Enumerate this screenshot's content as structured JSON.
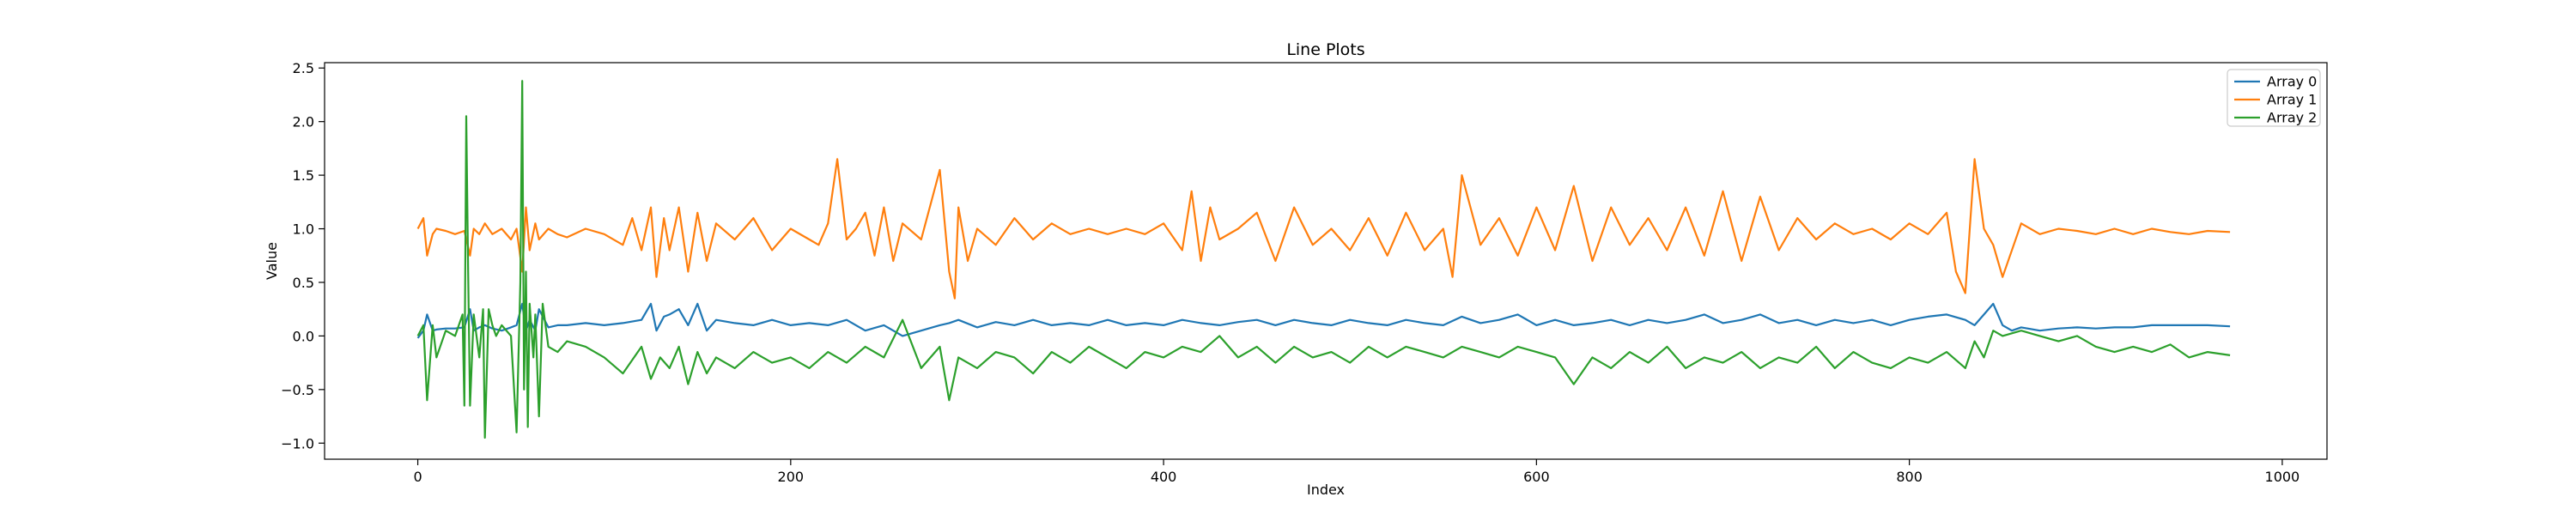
{
  "chart_data": {
    "type": "line",
    "title": "Line Plots",
    "xlabel": "Index",
    "ylabel": "Value",
    "xlim": [
      -50,
      1024
    ],
    "ylim": [
      -1.15,
      2.55
    ],
    "xticks": [
      0,
      200,
      400,
      600,
      800,
      1000
    ],
    "yticks": [
      -1.0,
      -0.5,
      0.0,
      0.5,
      1.0,
      1.5,
      2.0,
      2.5
    ],
    "ytick_labels": [
      "−1.0",
      "−0.5",
      "0.0",
      "0.5",
      "1.0",
      "1.5",
      "2.0",
      "2.5"
    ],
    "grid": false,
    "legend_position": "top-right",
    "series": [
      {
        "name": "Array 0",
        "color": "#1f77b4",
        "x": [
          0,
          3,
          5,
          8,
          10,
          15,
          20,
          25,
          28,
          30,
          33,
          36,
          40,
          45,
          50,
          53,
          56,
          58,
          60,
          63,
          65,
          70,
          75,
          80,
          90,
          100,
          110,
          120,
          125,
          128,
          132,
          135,
          140,
          145,
          150,
          155,
          160,
          170,
          180,
          190,
          200,
          210,
          220,
          230,
          240,
          250,
          260,
          270,
          280,
          285,
          290,
          300,
          310,
          320,
          330,
          340,
          350,
          360,
          370,
          380,
          390,
          400,
          410,
          420,
          430,
          440,
          450,
          460,
          470,
          480,
          490,
          500,
          510,
          520,
          530,
          540,
          550,
          560,
          570,
          580,
          590,
          600,
          610,
          620,
          630,
          640,
          650,
          660,
          670,
          680,
          690,
          700,
          710,
          720,
          730,
          740,
          750,
          760,
          770,
          780,
          790,
          800,
          810,
          820,
          830,
          835,
          840,
          845,
          850,
          855,
          860,
          870,
          880,
          890,
          900,
          910,
          920,
          930,
          940,
          950,
          960,
          972
        ],
        "values": [
          -0.02,
          0.05,
          0.2,
          0.05,
          0.06,
          0.07,
          0.07,
          0.08,
          0.25,
          0.05,
          0.08,
          0.1,
          0.07,
          0.05,
          0.08,
          0.1,
          0.3,
          0.05,
          0.15,
          0.05,
          0.25,
          0.08,
          0.1,
          0.1,
          0.12,
          0.1,
          0.12,
          0.15,
          0.3,
          0.05,
          0.18,
          0.2,
          0.25,
          0.1,
          0.3,
          0.05,
          0.15,
          0.12,
          0.1,
          0.15,
          0.1,
          0.12,
          0.1,
          0.15,
          0.05,
          0.1,
          0.0,
          0.05,
          0.1,
          0.12,
          0.15,
          0.08,
          0.13,
          0.1,
          0.15,
          0.1,
          0.12,
          0.1,
          0.15,
          0.1,
          0.12,
          0.1,
          0.15,
          0.12,
          0.1,
          0.13,
          0.15,
          0.1,
          0.15,
          0.12,
          0.1,
          0.15,
          0.12,
          0.1,
          0.15,
          0.12,
          0.1,
          0.18,
          0.12,
          0.15,
          0.2,
          0.1,
          0.15,
          0.1,
          0.12,
          0.15,
          0.1,
          0.15,
          0.12,
          0.15,
          0.2,
          0.12,
          0.15,
          0.2,
          0.12,
          0.15,
          0.1,
          0.15,
          0.12,
          0.15,
          0.1,
          0.15,
          0.18,
          0.2,
          0.15,
          0.1,
          0.2,
          0.3,
          0.1,
          0.05,
          0.08,
          0.05,
          0.07,
          0.08,
          0.07,
          0.08,
          0.08,
          0.1,
          0.1,
          0.1,
          0.1,
          0.09
        ]
      },
      {
        "name": "Array 1",
        "color": "#ff7f0e",
        "x": [
          0,
          3,
          5,
          8,
          10,
          15,
          20,
          25,
          28,
          30,
          33,
          36,
          40,
          45,
          50,
          53,
          56,
          58,
          60,
          63,
          65,
          70,
          75,
          80,
          90,
          100,
          110,
          115,
          120,
          125,
          128,
          132,
          135,
          140,
          145,
          150,
          155,
          160,
          170,
          180,
          190,
          200,
          210,
          215,
          220,
          225,
          230,
          235,
          240,
          245,
          250,
          255,
          260,
          270,
          280,
          285,
          288,
          290,
          295,
          300,
          310,
          320,
          330,
          340,
          350,
          360,
          370,
          380,
          390,
          400,
          410,
          415,
          420,
          425,
          430,
          440,
          450,
          460,
          470,
          480,
          490,
          500,
          510,
          520,
          530,
          540,
          550,
          555,
          560,
          570,
          580,
          590,
          600,
          610,
          620,
          630,
          640,
          650,
          660,
          670,
          680,
          690,
          700,
          710,
          720,
          730,
          740,
          750,
          760,
          770,
          780,
          790,
          800,
          810,
          820,
          825,
          830,
          835,
          840,
          845,
          850,
          860,
          870,
          880,
          890,
          900,
          910,
          920,
          930,
          940,
          950,
          960,
          972
        ],
        "values": [
          1.0,
          1.1,
          0.75,
          0.95,
          1.0,
          0.98,
          0.95,
          0.98,
          0.75,
          1.0,
          0.95,
          1.05,
          0.95,
          1.0,
          0.9,
          1.0,
          0.6,
          1.2,
          0.8,
          1.05,
          0.9,
          1.0,
          0.95,
          0.92,
          1.0,
          0.95,
          0.85,
          1.1,
          0.8,
          1.2,
          0.55,
          1.1,
          0.8,
          1.2,
          0.6,
          1.15,
          0.7,
          1.05,
          0.9,
          1.1,
          0.8,
          1.0,
          0.9,
          0.85,
          1.05,
          1.65,
          0.9,
          1.0,
          1.15,
          0.75,
          1.2,
          0.7,
          1.05,
          0.9,
          1.55,
          0.6,
          0.35,
          1.2,
          0.7,
          1.0,
          0.85,
          1.1,
          0.9,
          1.05,
          0.95,
          1.0,
          0.95,
          1.0,
          0.95,
          1.05,
          0.8,
          1.35,
          0.7,
          1.2,
          0.9,
          1.0,
          1.15,
          0.7,
          1.2,
          0.85,
          1.0,
          0.8,
          1.1,
          0.75,
          1.15,
          0.8,
          1.0,
          0.55,
          1.5,
          0.85,
          1.1,
          0.75,
          1.2,
          0.8,
          1.4,
          0.7,
          1.2,
          0.85,
          1.1,
          0.8,
          1.2,
          0.75,
          1.35,
          0.7,
          1.3,
          0.8,
          1.1,
          0.9,
          1.05,
          0.95,
          1.0,
          0.9,
          1.05,
          0.95,
          1.15,
          0.6,
          0.4,
          1.65,
          1.0,
          0.85,
          0.55,
          1.05,
          0.95,
          1.0,
          0.98,
          0.95,
          1.0,
          0.95,
          1.0,
          0.97,
          0.95,
          0.98,
          0.97
        ]
      },
      {
        "name": "Array 2",
        "color": "#2ca02c",
        "x": [
          0,
          3,
          5,
          8,
          10,
          15,
          20,
          24,
          25,
          26,
          27,
          28,
          30,
          33,
          35,
          36,
          38,
          40,
          42,
          45,
          50,
          53,
          55,
          56,
          57,
          58,
          59,
          60,
          62,
          63,
          65,
          67,
          70,
          75,
          80,
          90,
          100,
          110,
          120,
          125,
          130,
          135,
          140,
          145,
          150,
          155,
          160,
          170,
          180,
          190,
          200,
          210,
          220,
          230,
          240,
          250,
          260,
          270,
          280,
          285,
          290,
          300,
          310,
          320,
          330,
          340,
          350,
          360,
          370,
          380,
          390,
          400,
          410,
          420,
          430,
          440,
          450,
          460,
          470,
          480,
          490,
          500,
          510,
          520,
          530,
          540,
          550,
          560,
          570,
          580,
          590,
          600,
          610,
          620,
          630,
          640,
          650,
          660,
          670,
          680,
          690,
          700,
          710,
          720,
          730,
          740,
          750,
          760,
          770,
          780,
          790,
          800,
          810,
          820,
          830,
          835,
          840,
          845,
          850,
          860,
          870,
          880,
          890,
          900,
          910,
          920,
          930,
          940,
          950,
          960,
          972
        ],
        "values": [
          0.0,
          0.1,
          -0.6,
          0.1,
          -0.2,
          0.05,
          0.0,
          0.2,
          -0.65,
          2.05,
          0.6,
          -0.65,
          0.2,
          -0.2,
          0.25,
          -0.95,
          0.25,
          0.1,
          0.0,
          0.1,
          0.0,
          -0.9,
          0.5,
          2.38,
          -0.5,
          0.6,
          -0.85,
          0.3,
          -0.2,
          0.2,
          -0.75,
          0.3,
          -0.1,
          -0.15,
          -0.05,
          -0.1,
          -0.2,
          -0.35,
          -0.1,
          -0.4,
          -0.2,
          -0.3,
          -0.1,
          -0.45,
          -0.15,
          -0.35,
          -0.2,
          -0.3,
          -0.15,
          -0.25,
          -0.2,
          -0.3,
          -0.15,
          -0.25,
          -0.1,
          -0.2,
          0.15,
          -0.3,
          -0.1,
          -0.6,
          -0.2,
          -0.3,
          -0.15,
          -0.2,
          -0.35,
          -0.15,
          -0.25,
          -0.1,
          -0.2,
          -0.3,
          -0.15,
          -0.2,
          -0.1,
          -0.15,
          0.0,
          -0.2,
          -0.1,
          -0.25,
          -0.1,
          -0.2,
          -0.15,
          -0.25,
          -0.1,
          -0.2,
          -0.1,
          -0.15,
          -0.2,
          -0.1,
          -0.15,
          -0.2,
          -0.1,
          -0.15,
          -0.2,
          -0.45,
          -0.2,
          -0.3,
          -0.15,
          -0.25,
          -0.1,
          -0.3,
          -0.2,
          -0.25,
          -0.15,
          -0.3,
          -0.2,
          -0.25,
          -0.1,
          -0.3,
          -0.15,
          -0.25,
          -0.3,
          -0.2,
          -0.25,
          -0.15,
          -0.3,
          -0.05,
          -0.2,
          0.05,
          0.0,
          0.05,
          0.0,
          -0.05,
          0.0,
          -0.1,
          -0.15,
          -0.1,
          -0.15,
          -0.08,
          -0.2,
          -0.15,
          -0.18
        ]
      }
    ]
  }
}
